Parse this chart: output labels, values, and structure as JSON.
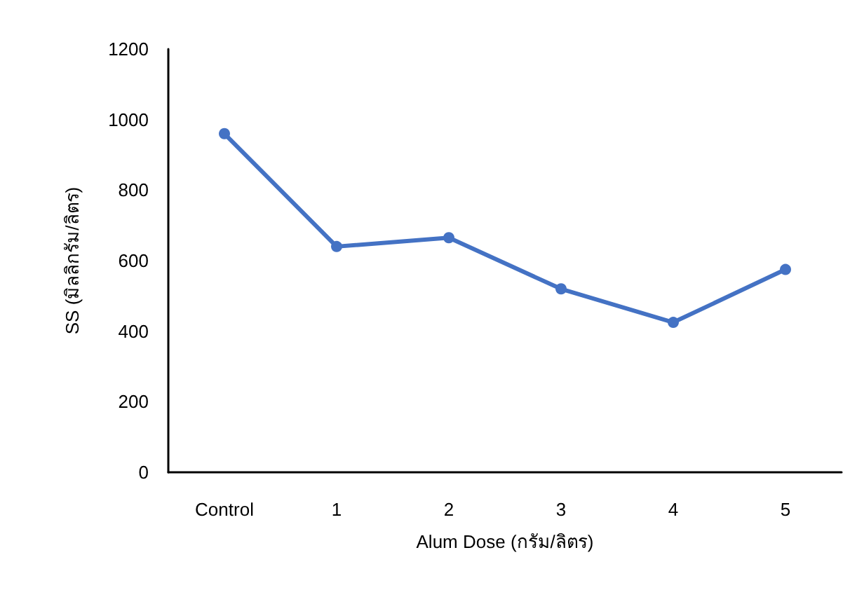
{
  "chart_data": {
    "type": "line",
    "xlabel": "Alum Dose (กรัม/ลิตร)",
    "ylabel": "SS (มิลลิกรัม/ลิตร)",
    "categories": [
      "Control",
      "1",
      "2",
      "3",
      "4",
      "5"
    ],
    "series": [
      {
        "color": "#4472c4",
        "values": [
          960,
          640,
          665,
          520,
          425,
          575
        ]
      }
    ],
    "ylim": [
      0,
      1200
    ],
    "yticks": [
      0,
      200,
      400,
      600,
      800,
      1000,
      1200
    ],
    "grid": false,
    "marker": "circle",
    "line_style": "solid"
  }
}
